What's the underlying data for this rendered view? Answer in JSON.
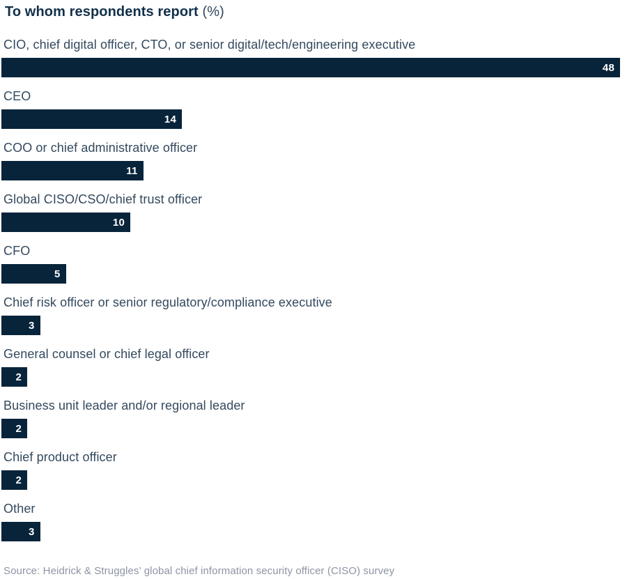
{
  "chart_data": {
    "type": "bar",
    "orientation": "horizontal",
    "title": "To whom respondents report",
    "title_suffix": "(%)",
    "categories": [
      "CIO, chief digital officer, CTO, or senior digital/tech/engineering executive",
      "CEO",
      "COO or chief administrative officer",
      "Global CISO/CSO/chief trust officer",
      "CFO",
      "Chief risk officer or senior regulatory/compliance executive",
      "General counsel or chief legal officer",
      "Business unit leader and/or regional leader",
      "Chief product officer",
      "Other"
    ],
    "values": [
      48,
      14,
      11,
      10,
      5,
      3,
      2,
      2,
      2,
      3
    ],
    "value_labels": [
      "48",
      "14",
      "11",
      "10",
      "5",
      "3",
      "2",
      "2",
      "2",
      "3"
    ],
    "value_label_position": "inside-end",
    "xlim": [
      0,
      48
    ],
    "grid": false,
    "legend": false,
    "source": "Source: Heidrick & Struggles’ global chief information security officer (CISO) survey",
    "colors": {
      "bar": "#07243a",
      "title": "#12304a",
      "category_label": "#33495e",
      "value_label": "#ffffff",
      "source_text": "#8d94a3",
      "background": "#ffffff"
    }
  }
}
